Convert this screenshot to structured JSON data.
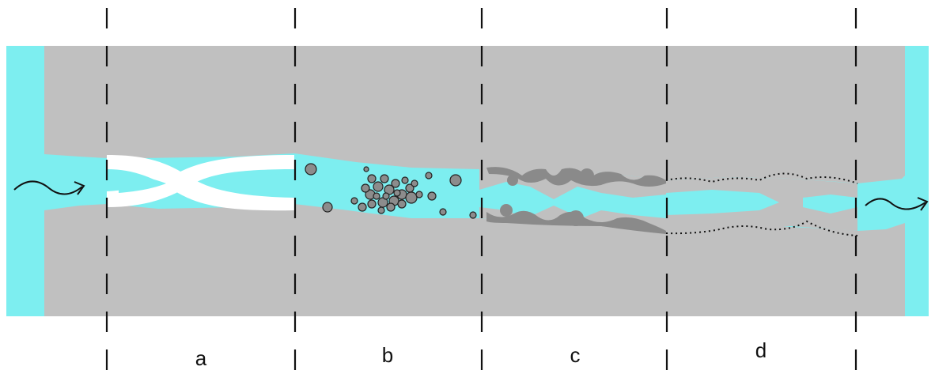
{
  "diagram": {
    "sections": [
      {
        "id": "a",
        "label": "a"
      },
      {
        "id": "b",
        "label": "b"
      },
      {
        "id": "c",
        "label": "c"
      },
      {
        "id": "d",
        "label": "d"
      }
    ],
    "colors": {
      "rock": "#c0c0c0",
      "fluid": "#7deef0",
      "band": "#ffffff",
      "particle": "#8c8c8c",
      "deposit": "#8a8a8a",
      "divider": "#111111",
      "arrow": "#111111"
    },
    "icons": {
      "inlet": "wavy-arrow-right-icon",
      "outlet": "wavy-arrow-right-icon"
    }
  }
}
